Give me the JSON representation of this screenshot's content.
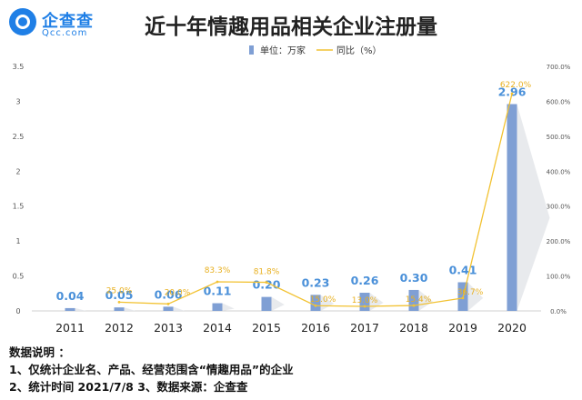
{
  "brand": {
    "name": "企查查",
    "domain": "Qcc.com",
    "color": "#1f7fe6"
  },
  "chart_data": {
    "type": "bar",
    "title": "近十年情趣用品相关企业注册量",
    "categories": [
      "2011",
      "2012",
      "2013",
      "2014",
      "2015",
      "2016",
      "2017",
      "2018",
      "2019",
      "2020"
    ],
    "series": [
      {
        "name": "单位：万家",
        "type": "bar",
        "axis": "left",
        "color": "#7f9fd4",
        "values": [
          0.04,
          0.05,
          0.06,
          0.11,
          0.2,
          0.23,
          0.26,
          0.3,
          0.41,
          2.96
        ],
        "labels": [
          "0.04",
          "0.05",
          "0.06",
          "0.11",
          "0.20",
          "0.23",
          "0.26",
          "0.30",
          "0.41",
          "2.96"
        ]
      },
      {
        "name": "同比（%）",
        "type": "line",
        "axis": "right",
        "color": "#f2c232",
        "values": [
          null,
          25.0,
          20.0,
          83.3,
          81.8,
          15.0,
          13.0,
          15.4,
          36.7,
          622.0
        ],
        "labels": [
          "",
          "25.0%",
          "20.0%",
          "83.3%",
          "81.8%",
          "15.0%",
          "13.0%",
          "15.4%",
          "36.7%",
          "622.0%"
        ]
      }
    ],
    "yleft": {
      "ylim": [
        0,
        3.5
      ],
      "ticks": [
        "0",
        "0.5",
        "1",
        "1.5",
        "2",
        "2.5",
        "3",
        "3.5"
      ]
    },
    "yright": {
      "ylim": [
        0,
        700
      ],
      "ticks": [
        "0.0%",
        "100.0%",
        "200.0%",
        "300.0%",
        "400.0%",
        "500.0%",
        "600.0%",
        "700.0%"
      ]
    },
    "legend": "top-center"
  },
  "notes": {
    "heading": "数据说明 ：",
    "line1": "1、仅统计企业名、产品、经营范围含“情趣用品”的企业",
    "line2": "2、统计时间  2021/7/8    3、数据来源：企查查"
  }
}
